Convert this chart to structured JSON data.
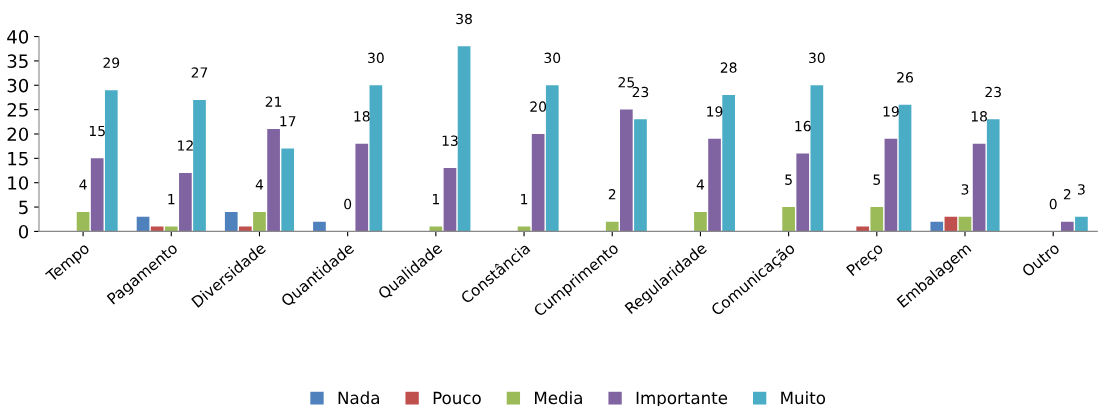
{
  "chart_data": {
    "type": "bar",
    "categories": [
      "Tempo",
      "Pagamento",
      "Diversidade",
      "Quantidade",
      "Qualidade",
      "Constância",
      "Cumprimento",
      "Regularidade",
      "Comunicação",
      "Preço",
      "Embalagem",
      "Outro"
    ],
    "series": [
      {
        "name": "Nada",
        "color": "#4f81bd",
        "values": [
          0,
          3,
          4,
          2,
          0,
          0,
          0,
          0,
          0,
          0,
          2,
          0
        ]
      },
      {
        "name": "Pouco",
        "color": "#c0504d",
        "values": [
          0,
          1,
          1,
          0,
          0,
          0,
          0,
          0,
          0,
          1,
          3,
          0
        ]
      },
      {
        "name": "Media",
        "color": "#9bbb59",
        "values": [
          4,
          1,
          4,
          0,
          1,
          1,
          2,
          4,
          5,
          5,
          3,
          0
        ],
        "value_labels": [
          "4",
          "1",
          "4",
          "0",
          "1",
          "1",
          "2",
          "4",
          "5",
          "5",
          "3",
          "0"
        ]
      },
      {
        "name": "Importante",
        "color": "#8064a2",
        "values": [
          15,
          12,
          21,
          18,
          13,
          20,
          25,
          19,
          16,
          19,
          18,
          2
        ],
        "value_labels": [
          "15",
          "12",
          "21",
          "18",
          "13",
          "20",
          "25",
          "19",
          "16",
          "19",
          "18",
          "2"
        ]
      },
      {
        "name": "Muito",
        "color": "#4bacc6",
        "values": [
          29,
          27,
          17,
          30,
          38,
          30,
          23,
          28,
          30,
          26,
          23,
          3
        ],
        "value_labels": [
          "29",
          "27",
          "17",
          "30",
          "38",
          "30",
          "23",
          "28",
          "30",
          "26",
          "23",
          "3"
        ]
      }
    ],
    "ylim": [
      0,
      40
    ],
    "yticks": [
      0,
      5,
      10,
      15,
      20,
      25,
      30,
      35,
      40
    ],
    "grid": false,
    "legend": "bottom"
  }
}
